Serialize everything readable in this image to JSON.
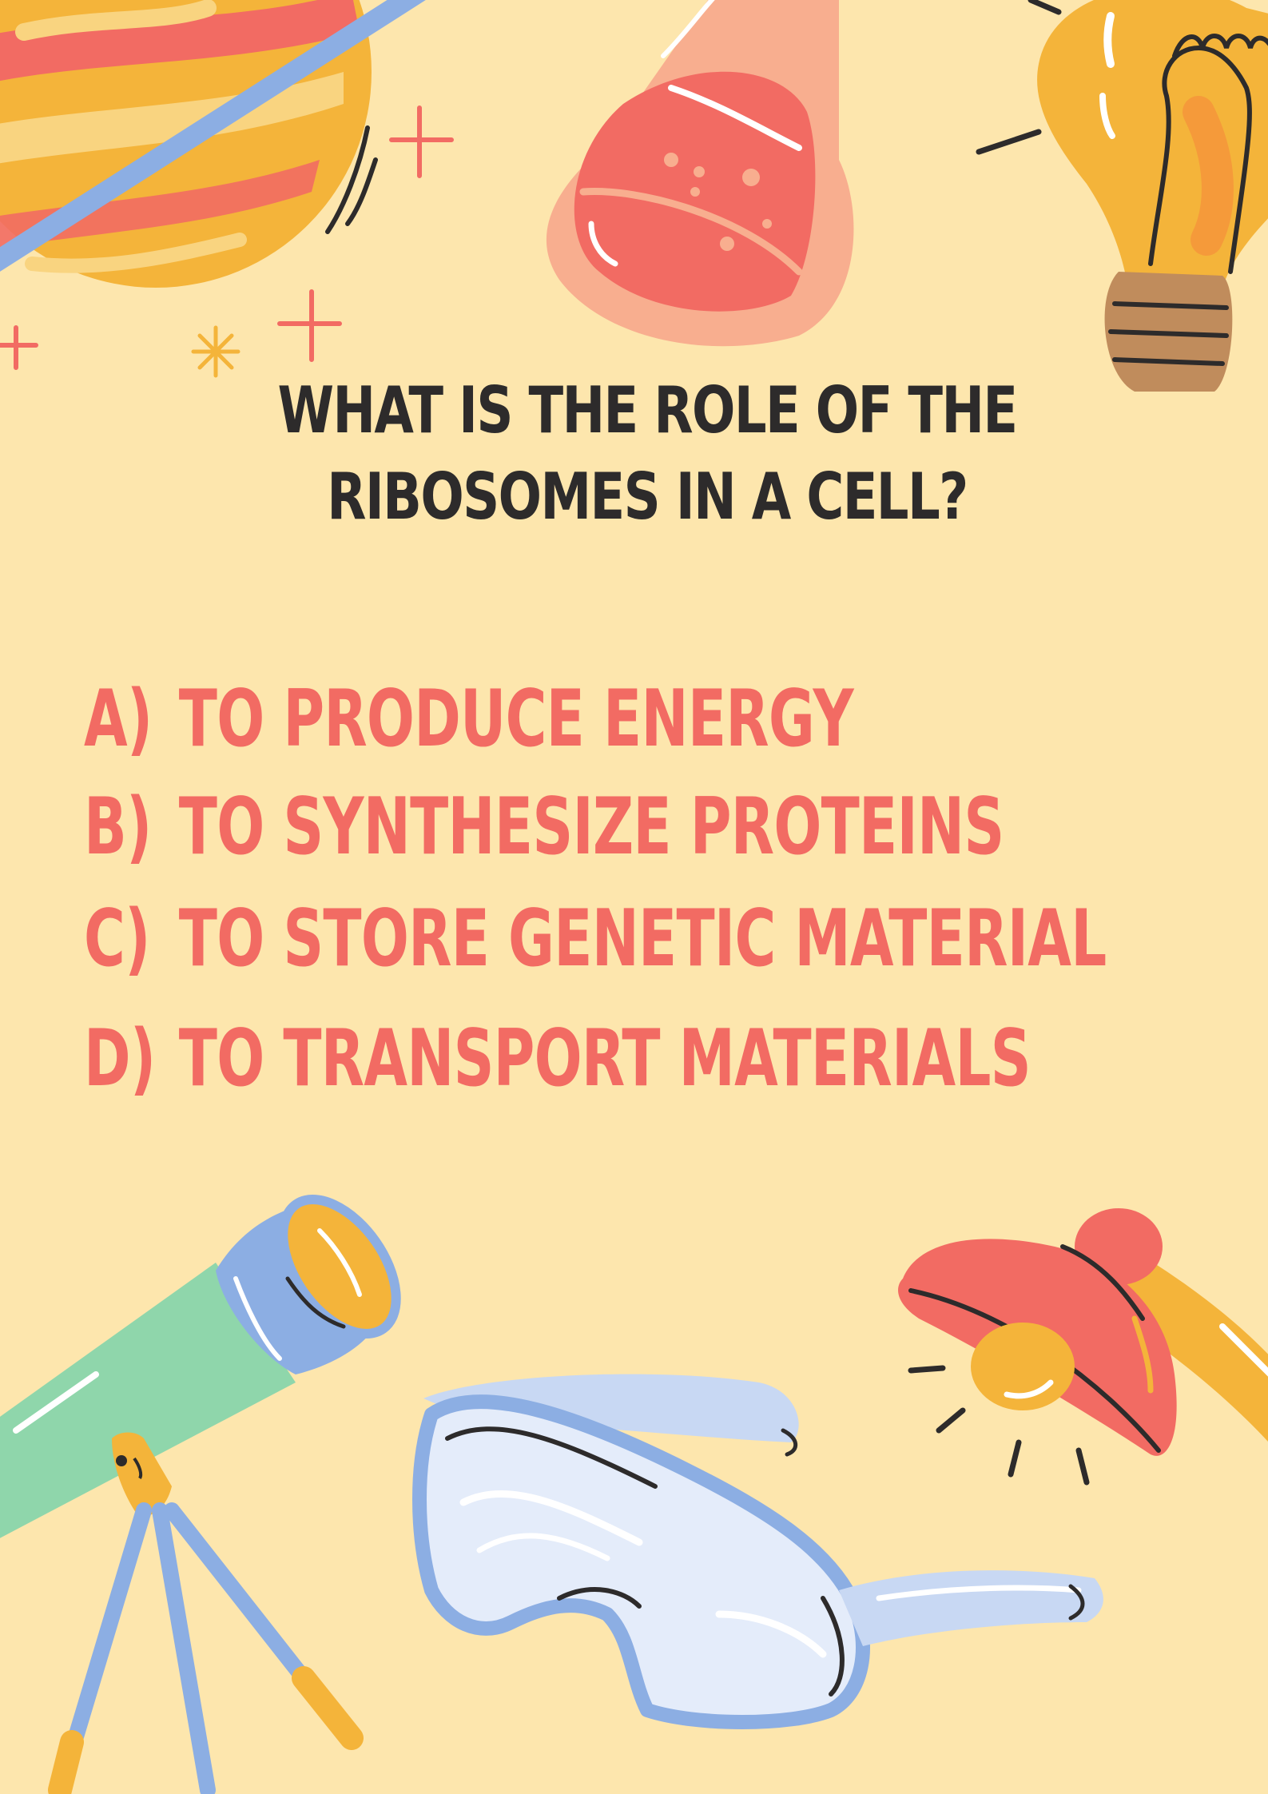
{
  "question": "WHAT IS THE ROLE OF THE RIBOSOMES IN A CELL?",
  "options": [
    {
      "letter": "A)",
      "text": "TO PRODUCE ENERGY"
    },
    {
      "letter": "B)",
      "text": "TO SYNTHESIZE PROTEINS"
    },
    {
      "letter": "C)",
      "text": "TO STORE GENETIC MATERIAL"
    },
    {
      "letter": "D)",
      "text": "TO TRANSPORT MATERIALS"
    }
  ],
  "colors": {
    "background": "#fde6ad",
    "question_text": "#2d2b2b",
    "option_text": "#f26b63",
    "accent_yellow": "#f4b43a",
    "accent_red": "#f26b63",
    "accent_blue": "#8caee3",
    "accent_green": "#8fd6ab"
  },
  "illustrations": [
    "planet-icon",
    "flask-icon",
    "light-bulb-icon",
    "telescope-icon",
    "safety-goggles-icon",
    "desk-lamp-icon",
    "sparkle-icon"
  ]
}
